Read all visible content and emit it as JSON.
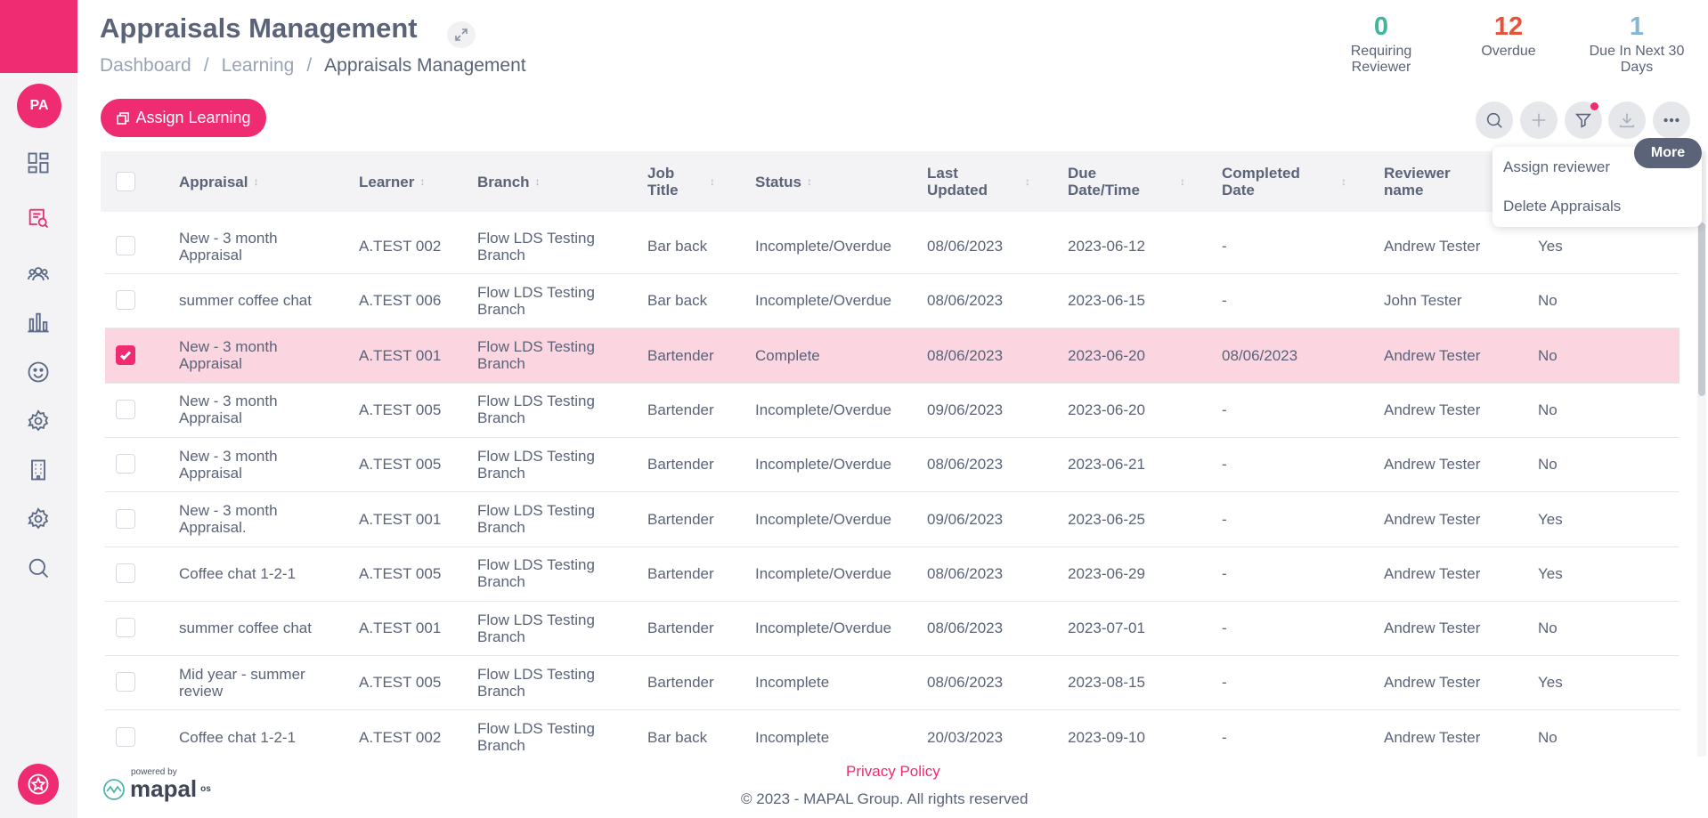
{
  "sidebar": {
    "avatar": "PA",
    "items": [
      {
        "name": "dashboard-icon"
      },
      {
        "name": "appraisals-icon",
        "active": true
      },
      {
        "name": "people-icon"
      },
      {
        "name": "reports-icon"
      },
      {
        "name": "smiley-icon"
      },
      {
        "name": "settings-icon"
      },
      {
        "name": "building-icon"
      },
      {
        "name": "settings-alt-icon"
      },
      {
        "name": "search-icon"
      }
    ]
  },
  "header": {
    "title": "Appraisals Management",
    "breadcrumb": [
      "Dashboard",
      "/",
      "Learning",
      "/",
      "Appraisals Management"
    ]
  },
  "stats": [
    {
      "value": "0",
      "label": "Requiring Reviewer",
      "color": "#3fb59c"
    },
    {
      "value": "12",
      "label": "Overdue",
      "color": "#e5533d"
    },
    {
      "value": "1",
      "label": "Due In Next 30 Days",
      "color": "#86b6d1"
    }
  ],
  "toolbar": {
    "assign_label": "Assign Learning",
    "more_tooltip": "More",
    "menu": [
      "Assign reviewer",
      "Delete Appraisals"
    ]
  },
  "table": {
    "columns": [
      "Appraisal",
      "Learner",
      "Branch",
      "Job Title",
      "Status",
      "Last Updated",
      "Due Date/Time",
      "Completed Date",
      "Reviewer name",
      ""
    ],
    "rows": [
      {
        "appraisal": "New - 3 month Appraisal",
        "learner": "A.TEST 002",
        "branch": "Flow LDS Testing Branch",
        "job": "Bar back",
        "status": "Incomplete/Overdue",
        "updated": "08/06/2023",
        "due": "2023-06-12",
        "completed": "-",
        "reviewer": "Andrew Tester",
        "flag": "Yes",
        "selected": false
      },
      {
        "appraisal": "summer coffee chat",
        "learner": "A.TEST 006",
        "branch": "Flow LDS Testing Branch",
        "job": "Bar back",
        "status": "Incomplete/Overdue",
        "updated": "08/06/2023",
        "due": "2023-06-15",
        "completed": "-",
        "reviewer": "John Tester",
        "flag": "No",
        "selected": false
      },
      {
        "appraisal": "New - 3 month Appraisal",
        "learner": "A.TEST 001",
        "branch": "Flow LDS Testing Branch",
        "job": "Bartender",
        "status": "Complete",
        "updated": "08/06/2023",
        "due": "2023-06-20",
        "completed": "08/06/2023",
        "reviewer": "Andrew Tester",
        "flag": "No",
        "selected": true
      },
      {
        "appraisal": "New - 3 month Appraisal",
        "learner": "A.TEST 005",
        "branch": "Flow LDS Testing Branch",
        "job": "Bartender",
        "status": "Incomplete/Overdue",
        "updated": "09/06/2023",
        "due": "2023-06-20",
        "completed": "-",
        "reviewer": "Andrew Tester",
        "flag": "No",
        "selected": false
      },
      {
        "appraisal": "New - 3 month Appraisal",
        "learner": "A.TEST 005",
        "branch": "Flow LDS Testing Branch",
        "job": "Bartender",
        "status": "Incomplete/Overdue",
        "updated": "08/06/2023",
        "due": "2023-06-21",
        "completed": "-",
        "reviewer": "Andrew Tester",
        "flag": "No",
        "selected": false
      },
      {
        "appraisal": "New - 3 month Appraisal.",
        "learner": "A.TEST 001",
        "branch": "Flow LDS Testing Branch",
        "job": "Bartender",
        "status": "Incomplete/Overdue",
        "updated": "09/06/2023",
        "due": "2023-06-25",
        "completed": "-",
        "reviewer": "Andrew Tester",
        "flag": "Yes",
        "selected": false
      },
      {
        "appraisal": "Coffee chat 1-2-1",
        "learner": "A.TEST 005",
        "branch": "Flow LDS Testing Branch",
        "job": "Bartender",
        "status": "Incomplete/Overdue",
        "updated": "08/06/2023",
        "due": "2023-06-29",
        "completed": "-",
        "reviewer": "Andrew Tester",
        "flag": "Yes",
        "selected": false
      },
      {
        "appraisal": "summer coffee chat",
        "learner": "A.TEST 001",
        "branch": "Flow LDS Testing Branch",
        "job": "Bartender",
        "status": "Incomplete/Overdue",
        "updated": "08/06/2023",
        "due": "2023-07-01",
        "completed": "-",
        "reviewer": "Andrew Tester",
        "flag": "No",
        "selected": false
      },
      {
        "appraisal": "Mid year - summer review",
        "learner": "A.TEST 005",
        "branch": "Flow LDS Testing Branch",
        "job": "Bartender",
        "status": "Incomplete",
        "updated": "08/06/2023",
        "due": "2023-08-15",
        "completed": "-",
        "reviewer": "Andrew Tester",
        "flag": "Yes",
        "selected": false
      },
      {
        "appraisal": "Coffee chat 1-2-1",
        "learner": "A.TEST 002",
        "branch": "Flow LDS Testing Branch",
        "job": "Bar back",
        "status": "Incomplete",
        "updated": "20/03/2023",
        "due": "2023-09-10",
        "completed": "-",
        "reviewer": "Andrew Tester",
        "flag": "No",
        "selected": false
      }
    ]
  },
  "footer": {
    "powered_by": "powered by",
    "logo": "mapal",
    "logo_suffix": "os",
    "privacy": "Privacy Policy",
    "copyright": "© 2023 - MAPAL Group. All rights reserved"
  },
  "colors": {
    "accent": "#ef2b72",
    "text": "#5a6378"
  }
}
